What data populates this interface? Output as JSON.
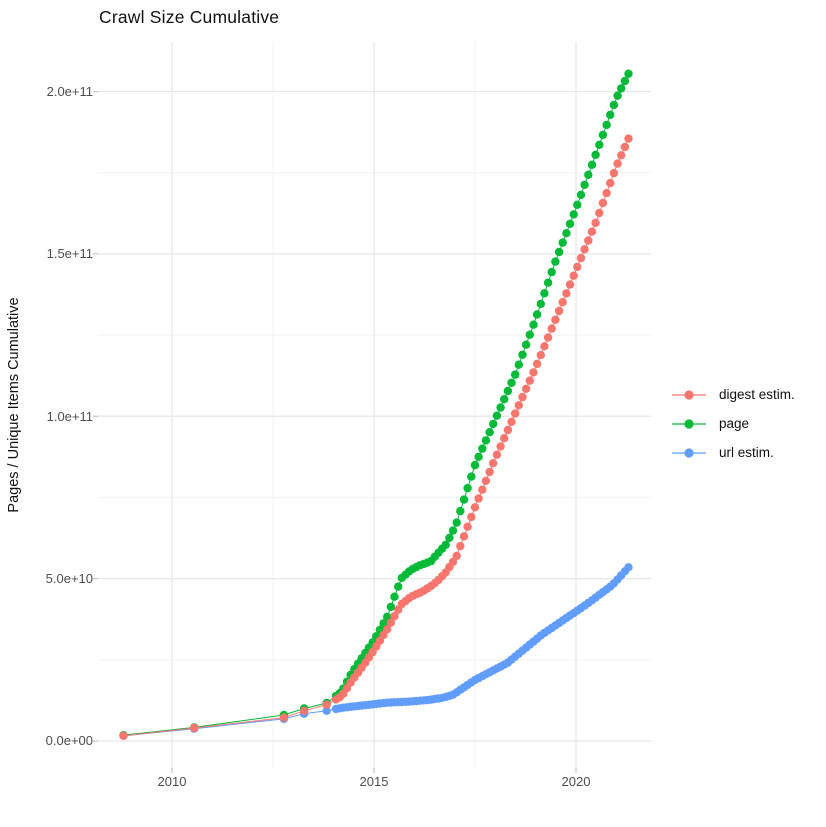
{
  "title": "Crawl Size Cumulative",
  "y_axis": {
    "label": "Pages / Unique Items Cumulative",
    "tick_labels_top_first": [
      "2.0e+11",
      "1.5e+11",
      "1.0e+11",
      "5.0e+10",
      "0.0e+00"
    ],
    "tick_values_e9": [
      200,
      150,
      100,
      50,
      0
    ],
    "minor_values_e9": [
      175,
      125,
      75,
      25
    ]
  },
  "x_axis": {
    "tick_labels": [
      "2010",
      "2015",
      "2020"
    ],
    "tick_values": [
      2010,
      2015,
      2020
    ],
    "minor_values": [
      2012.5,
      2017.5
    ]
  },
  "legend": [
    {
      "label": "digest estim.",
      "color": "#F8766D"
    },
    {
      "label": "page",
      "color": "#00BA38"
    },
    {
      "label": "url estim.",
      "color": "#619CFF"
    }
  ],
  "chart_data": {
    "type": "scatter",
    "title": "Crawl Size Cumulative",
    "xlabel": "",
    "ylabel": "Pages / Unique Items Cumulative",
    "x_range_years": [
      2008.2,
      2021.9
    ],
    "ylim_e9": [
      -8,
      215
    ],
    "grid": true,
    "legend_position": "right",
    "point_style": "filled-circle-with-line",
    "crawl_dates_sparse": [
      2008.8,
      2010.55,
      2012.77,
      2013.27,
      2013.83
    ],
    "crawl_dates_dense": {
      "start": 2014.06,
      "end": 2021.3,
      "count": 81
    },
    "units": "pages (values in billions, 1e9)",
    "series": [
      {
        "name": "url estim.",
        "color": "#619CFF",
        "points_e9": [
          [
            2008.8,
            1.6
          ],
          [
            2010.55,
            3.8
          ],
          [
            2012.77,
            6.8
          ],
          [
            2013.27,
            8.4
          ],
          [
            2013.83,
            9.3
          ],
          [
            2014.2,
            10.2
          ],
          [
            2014.83,
            11.1
          ],
          [
            2015.33,
            11.8
          ],
          [
            2015.83,
            12.1
          ],
          [
            2016.33,
            12.6
          ],
          [
            2016.7,
            13.3
          ],
          [
            2016.95,
            14.2
          ],
          [
            2017.5,
            18.8
          ],
          [
            2018.3,
            24.0
          ],
          [
            2019.15,
            32.7
          ],
          [
            2020.25,
            42.0
          ],
          [
            2020.9,
            48.0
          ],
          [
            2021.3,
            53.5
          ]
        ]
      },
      {
        "name": "page",
        "color": "#00BA38",
        "points_e9": [
          [
            2008.8,
            1.8
          ],
          [
            2010.55,
            4.2
          ],
          [
            2012.77,
            8.0
          ],
          [
            2013.27,
            10.0
          ],
          [
            2013.83,
            11.7
          ],
          [
            2014.2,
            15.2
          ],
          [
            2014.45,
            21.0
          ],
          [
            2014.75,
            26.5
          ],
          [
            2015.0,
            31.0
          ],
          [
            2015.33,
            38.3
          ],
          [
            2015.67,
            50.0
          ],
          [
            2015.92,
            52.8
          ],
          [
            2016.17,
            54.3
          ],
          [
            2016.4,
            55.2
          ],
          [
            2016.55,
            57.4
          ],
          [
            2016.78,
            60.5
          ],
          [
            2017.03,
            66.6
          ],
          [
            2017.5,
            85.0
          ],
          [
            2018.0,
            99.0
          ],
          [
            2018.5,
            113.0
          ],
          [
            2019.0,
            130.0
          ],
          [
            2019.5,
            148.0
          ],
          [
            2020.0,
            164.0
          ],
          [
            2020.5,
            181.0
          ],
          [
            2021.0,
            198.0
          ],
          [
            2021.3,
            205.5
          ]
        ]
      },
      {
        "name": "digest estim.",
        "color": "#F8766D",
        "points_e9": [
          [
            2008.8,
            1.6
          ],
          [
            2010.55,
            4.0
          ],
          [
            2012.77,
            7.2
          ],
          [
            2013.27,
            9.3
          ],
          [
            2013.83,
            11.2
          ],
          [
            2014.2,
            13.8
          ],
          [
            2014.45,
            18.5
          ],
          [
            2014.75,
            23.5
          ],
          [
            2015.0,
            28.0
          ],
          [
            2015.33,
            34.5
          ],
          [
            2015.67,
            42.0
          ],
          [
            2015.92,
            44.5
          ],
          [
            2016.2,
            46.0
          ],
          [
            2016.4,
            47.6
          ],
          [
            2016.55,
            49.0
          ],
          [
            2016.78,
            52.0
          ],
          [
            2017.03,
            56.5
          ],
          [
            2017.5,
            72.0
          ],
          [
            2018.0,
            87.0
          ],
          [
            2018.5,
            101.0
          ],
          [
            2019.0,
            115.0
          ],
          [
            2019.5,
            130.0
          ],
          [
            2020.0,
            145.0
          ],
          [
            2020.5,
            160.0
          ],
          [
            2021.0,
            177.0
          ],
          [
            2021.3,
            185.5
          ]
        ]
      }
    ],
    "colors": {
      "grid_major": "#E7E7E7",
      "grid_minor": "#F3F3F3",
      "tick_mark": "#C4C4C4",
      "tick_text": "#4d4d4d"
    }
  }
}
